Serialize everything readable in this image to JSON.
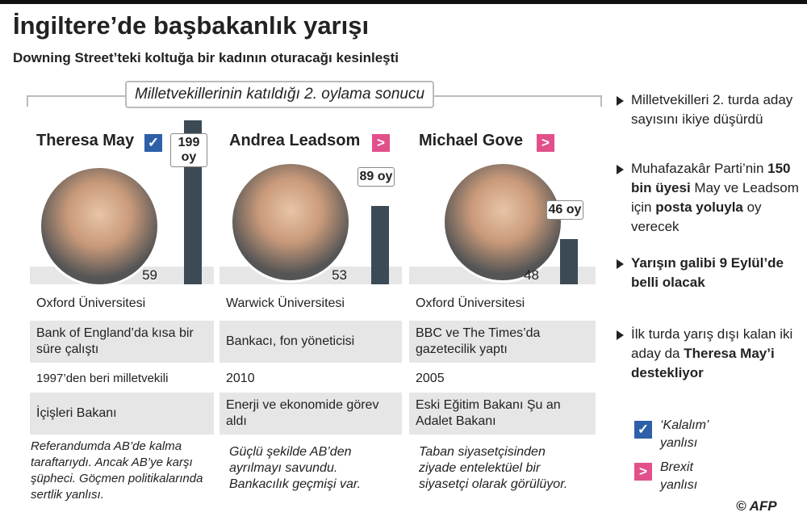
{
  "header": {
    "title": "İngiltere’de başbakanlık yarışı",
    "subtitle": "Downing Street’teki koltuğa bir kadının oturacağı kesinleşti"
  },
  "section_title": "Milletvekillerinin katıldığı 2. oylama sonucu",
  "candidates": [
    {
      "name": "Theresa May",
      "votes": 199,
      "votes_label": "199 oy",
      "age": "59",
      "university": "Oxford Üniversitesi",
      "career": "Bank of England’da kısa bir süre çalıştı",
      "since": "1997’den beri milletvekili",
      "role": "İçişleri Bakanı",
      "stance": "Referandumda AB’de kalma taraftarıydı. Ancak AB’ye karşı şüpheci. Göçmen politikalarında sertlik yanlısı."
    },
    {
      "name": "Andrea Leadsom",
      "votes": 89,
      "votes_label": "89 oy",
      "age": "53",
      "university": "Warwick Üniversitesi",
      "career": "Bankacı, fon yöneticisi",
      "since": "2010",
      "role": "Enerji ve ekonomide görev aldı",
      "stance": "Güçlü şekilde AB’den ayrılmayı savundu. Bankacılık geçmişi var."
    },
    {
      "name": "Michael Gove",
      "votes": 46,
      "votes_label": "46 oy",
      "age": "48",
      "university": "Oxford Üniversitesi",
      "career": "BBC ve The Times’da gazetecilik yaptı",
      "since": "2005",
      "role": "Eski Eğitim Bakanı Şu an Adalet Bakanı",
      "stance": "Taban siyasetçisinden ziyade entelektüel bir siyasetçi olarak görülüyor."
    }
  ],
  "notes": [
    [
      {
        "text": "Milletvekilleri 2. turda aday sayısını ikiye düşürdü",
        "bold": false
      }
    ],
    [
      {
        "text": "Muhafazakâr Parti’nin ",
        "bold": false
      },
      {
        "text": "150 bin üyesi",
        "bold": true
      },
      {
        "text": " May ve Leadsom için ",
        "bold": false
      },
      {
        "text": "posta yoluyla",
        "bold": true
      },
      {
        "text": " oy verecek",
        "bold": false
      }
    ],
    [
      {
        "text": "Yarışın galibi 9 Eylül’de belli olacak",
        "bold": true
      }
    ],
    [
      {
        "text": "İlk turda yarış dışı kalan iki aday da ",
        "bold": false
      },
      {
        "text": "Theresa May’i destekliyor",
        "bold": true
      }
    ]
  ],
  "legend": [
    {
      "label": "‘Kalalım’ yanlısı"
    },
    {
      "label": "Brexit yanlısı"
    }
  ],
  "credit": "© AFP"
}
